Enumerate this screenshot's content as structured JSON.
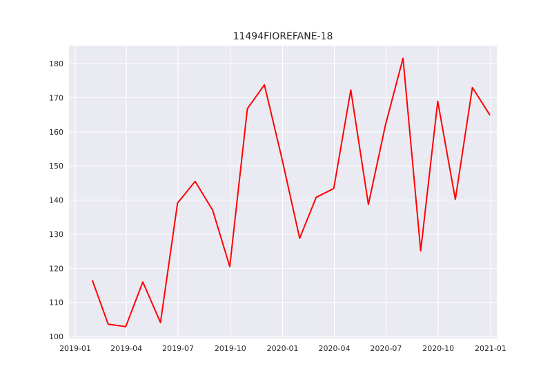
{
  "chart_data": {
    "type": "line",
    "title": "11494FIOREFANE-18",
    "xlabel": "",
    "ylabel": "",
    "x_tick_labels": [
      "2019-01",
      "2019-04",
      "2019-07",
      "2019-10",
      "2020-01",
      "2020-04",
      "2020-07",
      "2020-10",
      "2021-01"
    ],
    "x_ticks": [
      "2019-01-01",
      "2019-04-01",
      "2019-07-01",
      "2019-10-01",
      "2020-01-01",
      "2020-04-01",
      "2020-07-01",
      "2020-10-01",
      "2021-01-01"
    ],
    "y_ticks": [
      100,
      110,
      120,
      130,
      140,
      150,
      160,
      170,
      180
    ],
    "xlim": [
      "2018-12-21",
      "2021-01-12"
    ],
    "ylim": [
      99.4,
      185.3
    ],
    "grid": true,
    "colors": {
      "background": "#eaeaf2",
      "grid": "#ffffff",
      "line": "#ff0000"
    },
    "series": [
      {
        "x": [
          "2019-01-31",
          "2019-02-28",
          "2019-03-31",
          "2019-04-30",
          "2019-05-31",
          "2019-06-30",
          "2019-07-31",
          "2019-08-31",
          "2019-09-30",
          "2019-10-31",
          "2019-11-30",
          "2019-12-31",
          "2020-01-31",
          "2020-02-29",
          "2020-03-31",
          "2020-04-30",
          "2020-05-31",
          "2020-06-30",
          "2020-07-31",
          "2020-08-31",
          "2020-09-30",
          "2020-10-31",
          "2020-11-30",
          "2020-12-31"
        ],
        "values": [
          116.5,
          103.6,
          102.9,
          116.0,
          104.1,
          139.1,
          145.5,
          137.0,
          120.5,
          166.8,
          173.8,
          152.0,
          128.8,
          140.8,
          143.4,
          172.3,
          138.7,
          162.0,
          181.6,
          125.1,
          169.0,
          140.2,
          173.0,
          164.9
        ]
      }
    ]
  }
}
